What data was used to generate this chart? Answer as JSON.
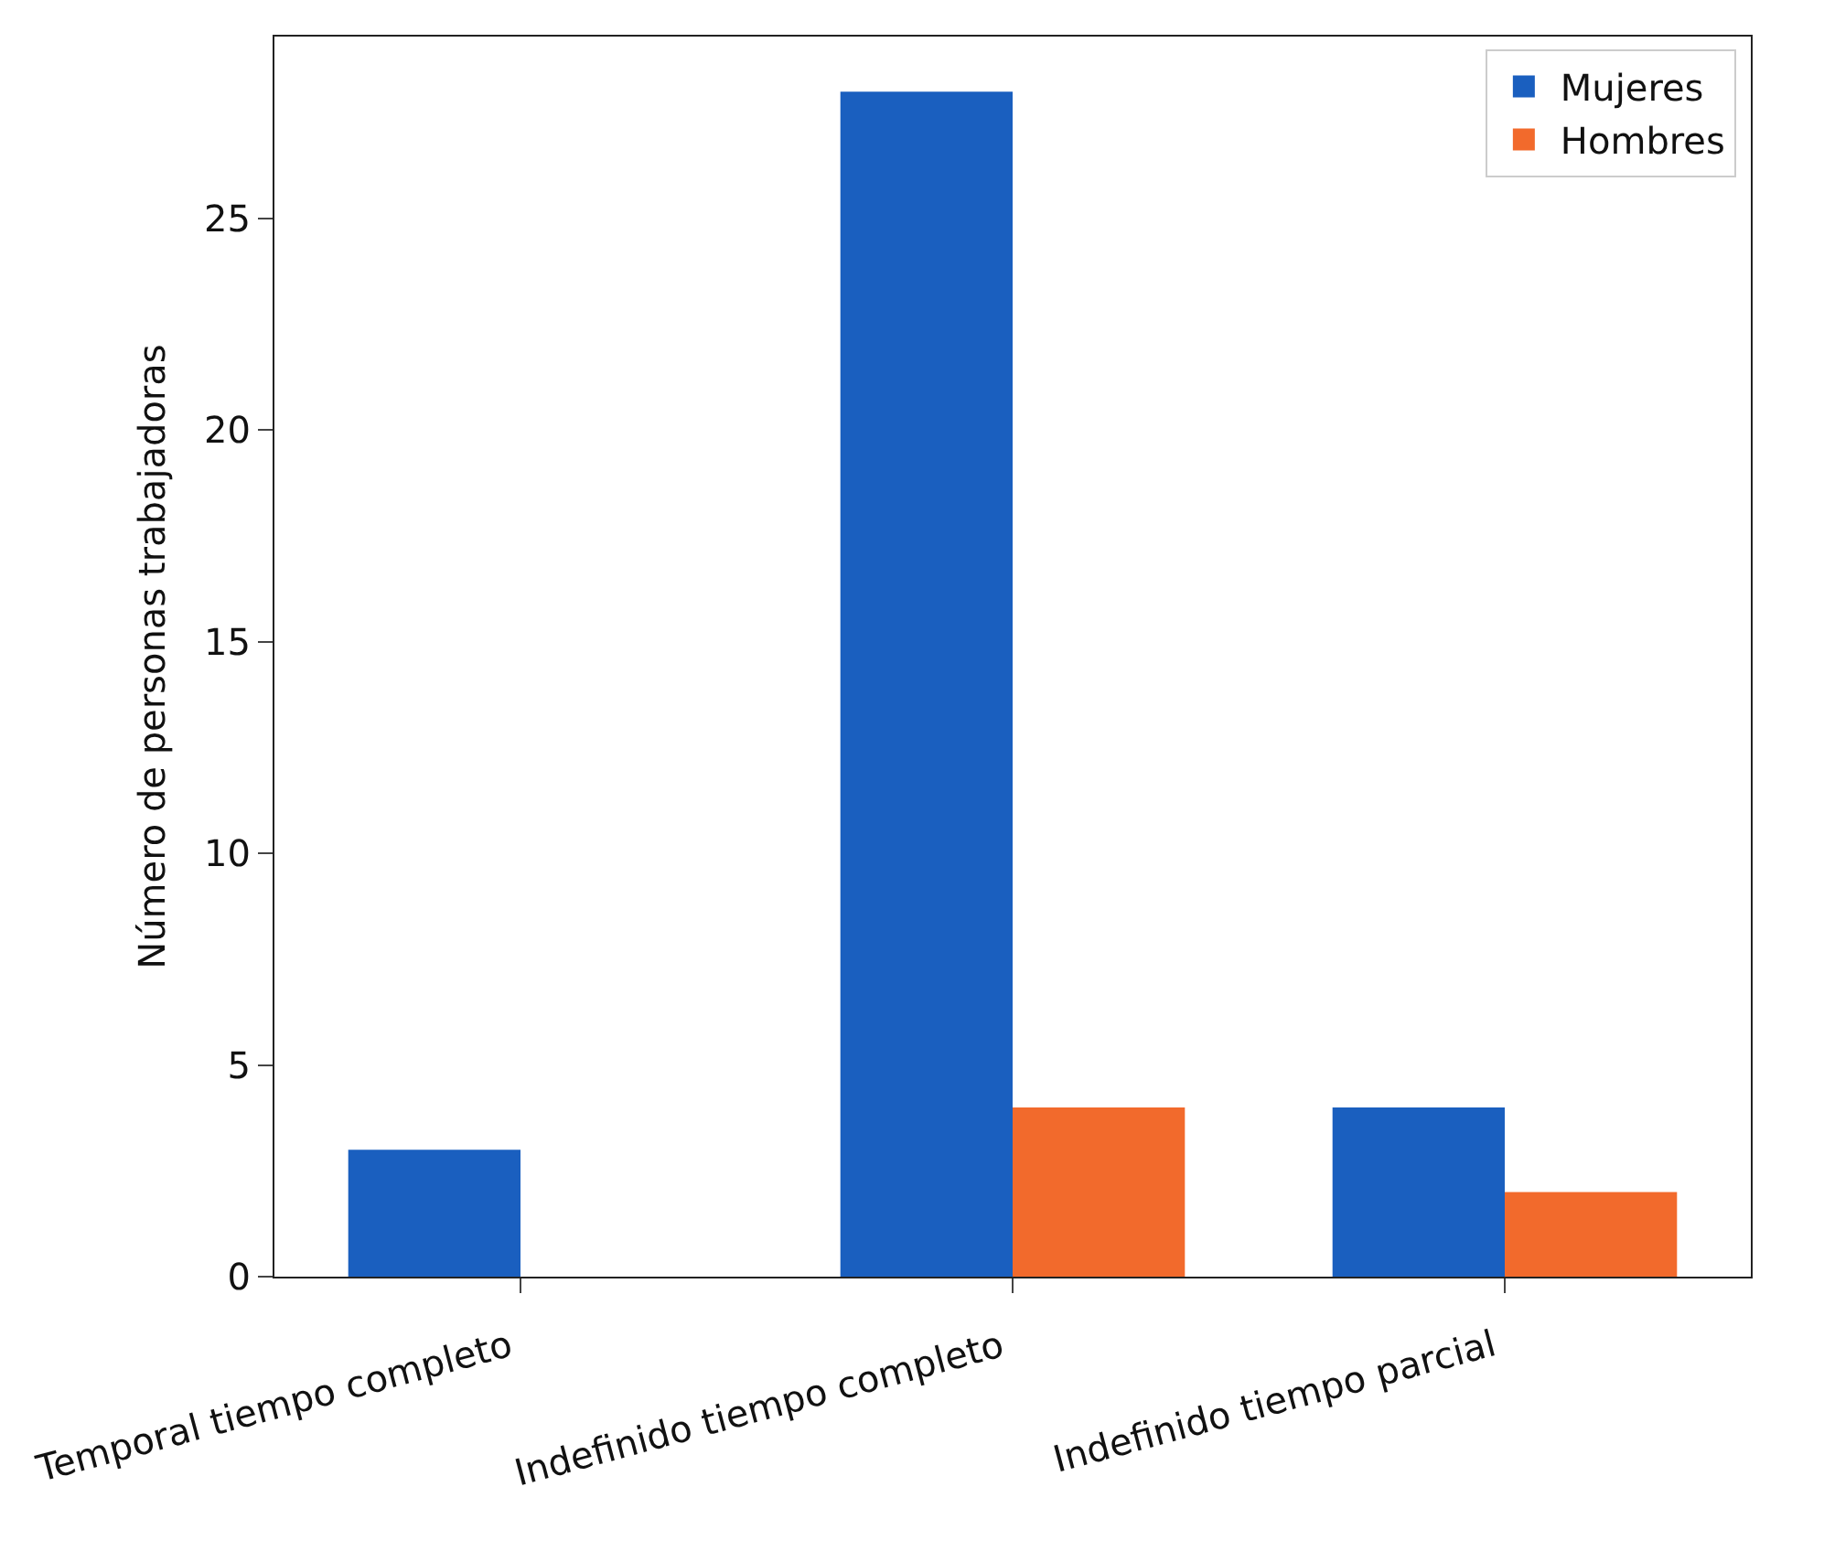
{
  "chart_data": {
    "type": "bar",
    "ylabel": "Número de personas trabajadoras",
    "categories": [
      "Temporal tiempo completo",
      "Indefinido tiempo completo",
      "Indefinido tiempo parcial"
    ],
    "series": [
      {
        "name": "Mujeres",
        "color": "#1a5fbf",
        "values": [
          3,
          28,
          4
        ]
      },
      {
        "name": "Hombres",
        "color": "#f26a2c",
        "values": [
          0,
          4,
          2
        ]
      }
    ],
    "ylim": [
      0,
      29.3
    ],
    "yticks": [
      0,
      5,
      10,
      15,
      20,
      25
    ],
    "legend": "top right"
  }
}
